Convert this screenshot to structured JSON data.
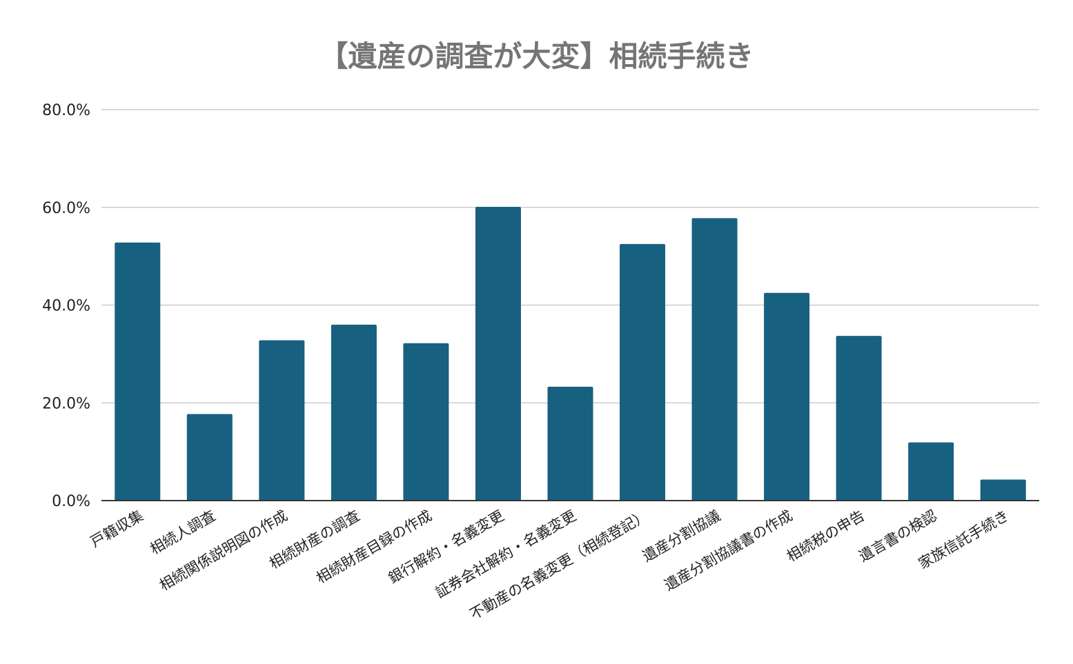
{
  "chart_data": {
    "type": "bar",
    "title": "【遺産の調査が大変】相続手続き",
    "xlabel": "",
    "ylabel": "",
    "ylim": [
      0,
      80
    ],
    "yticks": [
      "0.0%",
      "20.0%",
      "40.0%",
      "60.0%",
      "80.0%"
    ],
    "grid": true,
    "legend": "none",
    "categories": [
      "戸籍収集",
      "相続人調査",
      "相続関係説明図の作成",
      "相続財産の調査",
      "相続財産目録の作成",
      "銀行解約・名義変更",
      "証券会社解約・名義変更",
      "不動産の名義変更（相続登記）",
      "遺産分割協議",
      "遺産分割協議書の作成",
      "相続税の申告",
      "遺言書の検認",
      "家族信託手続き"
    ],
    "values": [
      52.8,
      17.7,
      32.8,
      36.0,
      32.2,
      60.1,
      23.3,
      52.5,
      57.8,
      42.5,
      33.7,
      11.9,
      4.3
    ],
    "bar_color": "#176080",
    "grid_color": "#cccccc",
    "axis_color": "#333333"
  }
}
